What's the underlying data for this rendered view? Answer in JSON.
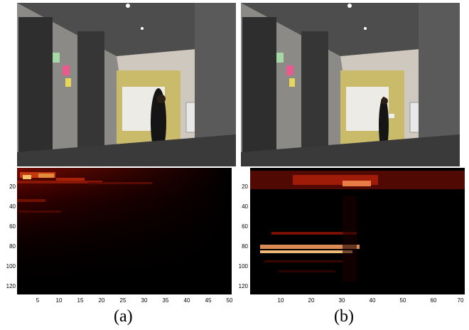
{
  "panels": [
    {
      "id": "a",
      "caption": "(a)",
      "heatmap": {
        "y_ticks": [
          "20",
          "40",
          "60",
          "80",
          "100",
          "120"
        ],
        "x_ticks": [
          "5",
          "10",
          "15",
          "20",
          "25",
          "30",
          "35",
          "40",
          "45",
          "50"
        ]
      }
    },
    {
      "id": "b",
      "caption": "(b)",
      "heatmap": {
        "y_ticks": [
          "20",
          "40",
          "60",
          "80",
          "100",
          "120"
        ],
        "x_ticks": [
          "10",
          "20",
          "30",
          "40",
          "50",
          "60",
          "70"
        ]
      }
    }
  ],
  "colors": {
    "heatmap_low": "#000000",
    "heatmap_mid": "#8b0000",
    "heatmap_high": "#ffd27a"
  }
}
